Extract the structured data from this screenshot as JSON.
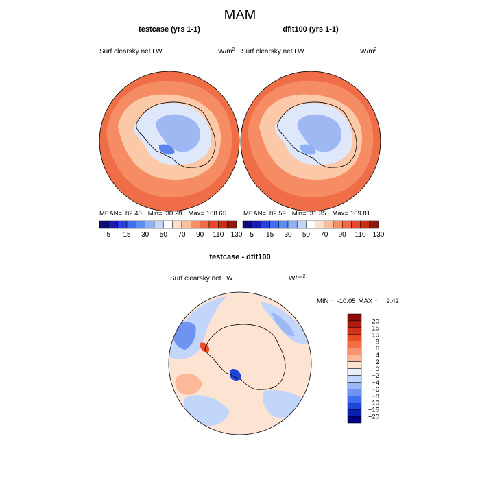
{
  "figure": {
    "title": "MAM",
    "units_base": "W/m",
    "units_exp": "2"
  },
  "chart_data": [
    {
      "type": "heatmap",
      "projection": "south polar stereographic",
      "title": "testcase (yrs 1-1)",
      "field_label": "Surf clearsky net LW",
      "stats": {
        "mean": "82.40",
        "min": "30.28",
        "max": "108.65"
      },
      "stats_text": {
        "mean_label": "MEAN=",
        "min_label": "Min=",
        "max_label": "Max="
      },
      "colorbar": {
        "orientation": "horizontal",
        "levels": [
          5,
          10,
          15,
          20,
          30,
          40,
          50,
          60,
          70,
          80,
          90,
          100,
          110,
          120,
          130
        ],
        "tick_labels": [
          "5",
          "15",
          "30",
          "50",
          "70",
          "90",
          "110",
          "130"
        ]
      }
    },
    {
      "type": "heatmap",
      "projection": "south polar stereographic",
      "title": "dflt100 (yrs 1-1)",
      "field_label": "Surf clearsky net LW",
      "stats": {
        "mean": "82.59",
        "min": "31.35",
        "max": "109.81"
      },
      "stats_text": {
        "mean_label": "MEAN=",
        "min_label": "Min=",
        "max_label": "Max="
      },
      "colorbar": {
        "orientation": "horizontal",
        "levels": [
          5,
          10,
          15,
          20,
          30,
          40,
          50,
          60,
          70,
          80,
          90,
          100,
          110,
          120,
          130
        ],
        "tick_labels": [
          "5",
          "15",
          "30",
          "50",
          "70",
          "90",
          "110",
          "130"
        ]
      }
    },
    {
      "type": "heatmap",
      "projection": "south polar stereographic",
      "title": "testcase - dflt100",
      "field_label": "Surf clearsky net LW",
      "stats": {
        "min": "-10.05",
        "max": "9.42"
      },
      "stats_text": {
        "min_label": "MIN =",
        "max_label": "MAX ="
      },
      "colorbar": {
        "orientation": "vertical",
        "tick_labels": [
          "20",
          "15",
          "10",
          "8",
          "6",
          "4",
          "2",
          "0",
          "−2",
          "−4",
          "−6",
          "−8",
          "−10",
          "−15",
          "−20"
        ]
      }
    }
  ],
  "colors": {
    "abs_scale": [
      "#0b0b7a",
      "#1a1ab0",
      "#2a3fe0",
      "#3f6ef0",
      "#5e8ef2",
      "#8fb0f5",
      "#c2d5fa",
      "#ffffff",
      "#fde0cc",
      "#fbbd9a",
      "#f8916a",
      "#f26a45",
      "#e8492a",
      "#c92d17",
      "#8b1a0a"
    ],
    "diff_scale": [
      "#8b0a0a",
      "#b01a0f",
      "#d2321a",
      "#e84d25",
      "#f26f45",
      "#f99270",
      "#fbb99a",
      "#fde3d2",
      "#eaf0fb",
      "#c2d5fa",
      "#9bb7f5",
      "#6e93f0",
      "#3f6ef0",
      "#2046d8",
      "#0b20b0",
      "#000080"
    ]
  }
}
